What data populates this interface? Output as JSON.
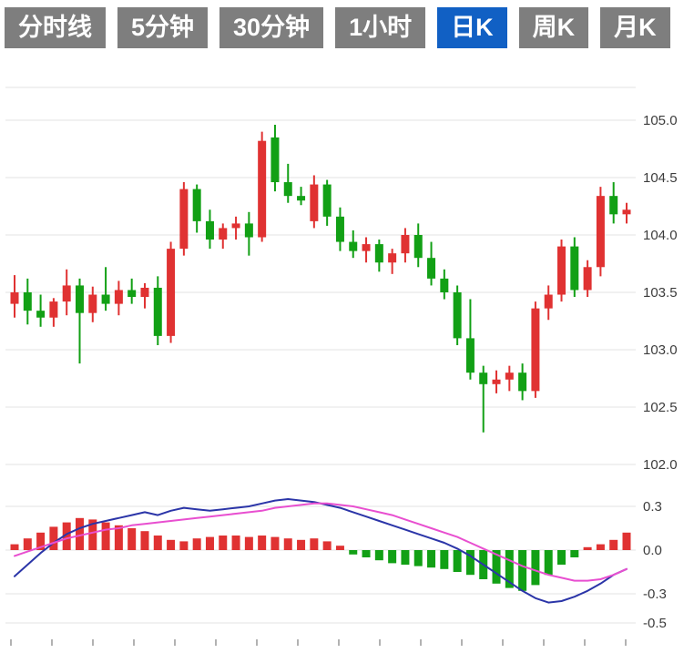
{
  "tabs": {
    "items": [
      {
        "label": "分时线",
        "active": false
      },
      {
        "label": "5分钟",
        "active": false
      },
      {
        "label": "30分钟",
        "active": false
      },
      {
        "label": "1小时",
        "active": false
      },
      {
        "label": "日K",
        "active": true
      },
      {
        "label": "周K",
        "active": false
      },
      {
        "label": "月K",
        "active": false
      }
    ]
  },
  "colors": {
    "up": "#e03232",
    "down": "#12a015",
    "dif_line": "#2b35a8",
    "dea_line": "#e84fd0",
    "grid": "#e3e3e3",
    "axis_text": "#3c3c3c",
    "tick": "#999999",
    "tab_bg": "#7e7e7e",
    "tab_active_bg": "#1160c4",
    "tab_text": "#ffffff"
  },
  "chart_data": [
    {
      "type": "candlestick",
      "title": "",
      "grid": true,
      "y_axis_side": "right",
      "yticks": [
        105.0,
        104.5,
        104.0,
        103.5,
        103.0,
        102.5,
        102.0
      ],
      "ylim": [
        102.0,
        105.3
      ],
      "candles": [
        [
          103.4,
          103.65,
          103.28,
          103.5
        ],
        [
          103.5,
          103.62,
          103.22,
          103.34
        ],
        [
          103.34,
          103.48,
          103.2,
          103.28
        ],
        [
          103.28,
          103.45,
          103.2,
          103.42
        ],
        [
          103.42,
          103.7,
          103.3,
          103.56
        ],
        [
          103.56,
          103.62,
          102.88,
          103.32
        ],
        [
          103.32,
          103.55,
          103.24,
          103.48
        ],
        [
          103.48,
          103.72,
          103.34,
          103.4
        ],
        [
          103.4,
          103.6,
          103.3,
          103.52
        ],
        [
          103.52,
          103.62,
          103.4,
          103.46
        ],
        [
          103.46,
          103.58,
          103.36,
          103.54
        ],
        [
          103.54,
          103.64,
          103.04,
          103.12
        ],
        [
          103.12,
          103.94,
          103.06,
          103.88
        ],
        [
          103.88,
          104.46,
          103.82,
          104.4
        ],
        [
          104.4,
          104.44,
          104.02,
          104.12
        ],
        [
          104.12,
          104.22,
          103.88,
          103.96
        ],
        [
          103.96,
          104.1,
          103.88,
          104.06
        ],
        [
          104.06,
          104.16,
          103.96,
          104.1
        ],
        [
          104.1,
          104.2,
          103.82,
          103.98
        ],
        [
          103.98,
          104.9,
          103.94,
          104.82
        ],
        [
          104.85,
          104.96,
          104.38,
          104.46
        ],
        [
          104.46,
          104.62,
          104.28,
          104.34
        ],
        [
          104.34,
          104.42,
          104.26,
          104.3
        ],
        [
          104.12,
          104.52,
          104.06,
          104.44
        ],
        [
          104.44,
          104.48,
          104.08,
          104.16
        ],
        [
          104.16,
          104.24,
          103.86,
          103.94
        ],
        [
          103.94,
          104.04,
          103.8,
          103.86
        ],
        [
          103.86,
          103.98,
          103.76,
          103.92
        ],
        [
          103.92,
          103.96,
          103.68,
          103.76
        ],
        [
          103.76,
          103.88,
          103.66,
          103.84
        ],
        [
          103.84,
          104.06,
          103.76,
          104.0
        ],
        [
          104.0,
          104.1,
          103.72,
          103.8
        ],
        [
          103.8,
          103.94,
          103.56,
          103.62
        ],
        [
          103.62,
          103.7,
          103.44,
          103.5
        ],
        [
          103.5,
          103.56,
          103.04,
          103.1
        ],
        [
          103.1,
          103.44,
          102.74,
          102.8
        ],
        [
          102.8,
          102.86,
          102.28,
          102.7
        ],
        [
          102.7,
          102.82,
          102.62,
          102.74
        ],
        [
          102.74,
          102.86,
          102.64,
          102.8
        ],
        [
          102.8,
          102.88,
          102.56,
          102.64
        ],
        [
          102.64,
          103.42,
          102.58,
          103.36
        ],
        [
          103.36,
          103.56,
          103.26,
          103.48
        ],
        [
          103.48,
          103.96,
          103.42,
          103.9
        ],
        [
          103.9,
          103.98,
          103.46,
          103.52
        ],
        [
          103.52,
          103.78,
          103.46,
          103.72
        ],
        [
          103.72,
          104.42,
          103.64,
          104.34
        ],
        [
          104.34,
          104.46,
          104.1,
          104.18
        ],
        [
          104.18,
          104.28,
          104.1,
          104.22
        ]
      ]
    },
    {
      "type": "macd",
      "grid": true,
      "y_axis_side": "right",
      "yticks": [
        0.3,
        0.0,
        -0.3,
        -0.5
      ],
      "ylim": [
        -0.5,
        0.5
      ],
      "histogram": [
        0.04,
        0.08,
        0.12,
        0.16,
        0.19,
        0.22,
        0.21,
        0.19,
        0.17,
        0.15,
        0.13,
        0.1,
        0.07,
        0.06,
        0.08,
        0.09,
        0.1,
        0.1,
        0.09,
        0.1,
        0.09,
        0.08,
        0.07,
        0.08,
        0.06,
        0.03,
        -0.03,
        -0.05,
        -0.07,
        -0.09,
        -0.1,
        -0.11,
        -0.12,
        -0.13,
        -0.15,
        -0.17,
        -0.2,
        -0.23,
        -0.26,
        -0.28,
        -0.24,
        -0.17,
        -0.1,
        -0.05,
        0.02,
        0.04,
        0.07,
        0.12
      ],
      "series": [
        {
          "name": "DIF",
          "values": [
            -0.18,
            -0.1,
            -0.02,
            0.05,
            0.11,
            0.15,
            0.18,
            0.2,
            0.22,
            0.24,
            0.26,
            0.24,
            0.27,
            0.29,
            0.28,
            0.27,
            0.28,
            0.29,
            0.3,
            0.32,
            0.34,
            0.35,
            0.34,
            0.33,
            0.31,
            0.29,
            0.26,
            0.23,
            0.2,
            0.17,
            0.14,
            0.11,
            0.08,
            0.05,
            0.01,
            -0.04,
            -0.1,
            -0.16,
            -0.22,
            -0.28,
            -0.33,
            -0.36,
            -0.35,
            -0.32,
            -0.28,
            -0.23,
            -0.17,
            -0.13
          ]
        },
        {
          "name": "DEA",
          "values": [
            -0.04,
            -0.01,
            0.02,
            0.05,
            0.08,
            0.1,
            0.12,
            0.14,
            0.15,
            0.17,
            0.18,
            0.19,
            0.2,
            0.21,
            0.22,
            0.23,
            0.24,
            0.25,
            0.26,
            0.27,
            0.29,
            0.3,
            0.31,
            0.32,
            0.32,
            0.31,
            0.3,
            0.28,
            0.26,
            0.24,
            0.21,
            0.18,
            0.15,
            0.12,
            0.09,
            0.05,
            0.01,
            -0.03,
            -0.07,
            -0.11,
            -0.14,
            -0.17,
            -0.19,
            -0.21,
            -0.21,
            -0.2,
            -0.17,
            -0.13
          ]
        }
      ]
    }
  ]
}
